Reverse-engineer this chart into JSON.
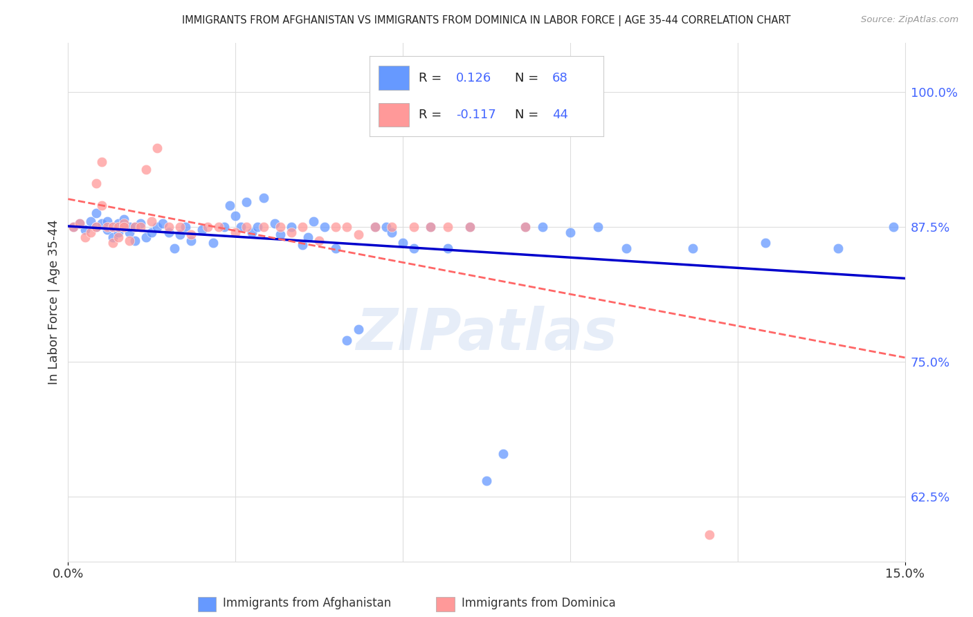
{
  "title": "IMMIGRANTS FROM AFGHANISTAN VS IMMIGRANTS FROM DOMINICA IN LABOR FORCE | AGE 35-44 CORRELATION CHART",
  "source": "Source: ZipAtlas.com",
  "ylabel": "In Labor Force | Age 35-44",
  "ytick_vals": [
    0.625,
    0.75,
    0.875,
    1.0
  ],
  "ytick_labels": [
    "62.5%",
    "75.0%",
    "87.5%",
    "100.0%"
  ],
  "xmin": 0.0,
  "xmax": 0.15,
  "ymin": 0.565,
  "ymax": 1.045,
  "afghanistan_color": "#6699ff",
  "dominica_color": "#ff9999",
  "afghanistan_line_color": "#0000cc",
  "dominica_line_color": "#ff6666",
  "R_afghanistan": "0.126",
  "N_afghanistan": "68",
  "R_dominica": "-0.117",
  "N_dominica": "44",
  "legend_label_afghanistan": "Immigrants from Afghanistan",
  "legend_label_dominica": "Immigrants from Dominica",
  "watermark": "ZIPatlas",
  "background_color": "#ffffff",
  "grid_color": "#dddddd",
  "title_color": "#222222",
  "source_color": "#999999",
  "ylabel_color": "#333333",
  "ytick_color": "#4466ff",
  "xtick_color": "#333333",
  "r_label_color": "#222222",
  "r_value_color": "#4466ff",
  "afghanistan_x": [
    0.001,
    0.002,
    0.003,
    0.004,
    0.005,
    0.005,
    0.006,
    0.007,
    0.007,
    0.008,
    0.008,
    0.009,
    0.009,
    0.01,
    0.01,
    0.011,
    0.011,
    0.012,
    0.012,
    0.013,
    0.014,
    0.015,
    0.016,
    0.017,
    0.018,
    0.019,
    0.02,
    0.021,
    0.022,
    0.024,
    0.026,
    0.028,
    0.029,
    0.03,
    0.031,
    0.032,
    0.033,
    0.034,
    0.035,
    0.037,
    0.038,
    0.04,
    0.042,
    0.043,
    0.044,
    0.046,
    0.048,
    0.05,
    0.052,
    0.055,
    0.057,
    0.058,
    0.06,
    0.062,
    0.065,
    0.068,
    0.072,
    0.075,
    0.078,
    0.082,
    0.085,
    0.09,
    0.095,
    0.1,
    0.112,
    0.125,
    0.138,
    0.148
  ],
  "afghanistan_y": [
    0.875,
    0.878,
    0.872,
    0.88,
    0.888,
    0.875,
    0.878,
    0.872,
    0.88,
    0.875,
    0.865,
    0.87,
    0.878,
    0.875,
    0.882,
    0.875,
    0.87,
    0.862,
    0.875,
    0.878,
    0.865,
    0.87,
    0.875,
    0.878,
    0.87,
    0.855,
    0.868,
    0.875,
    0.862,
    0.872,
    0.86,
    0.875,
    0.895,
    0.885,
    0.875,
    0.898,
    0.87,
    0.875,
    0.902,
    0.878,
    0.868,
    0.875,
    0.858,
    0.865,
    0.88,
    0.875,
    0.855,
    0.77,
    0.78,
    0.875,
    0.875,
    0.87,
    0.86,
    0.855,
    0.875,
    0.855,
    0.875,
    0.64,
    0.665,
    0.875,
    0.875,
    0.87,
    0.875,
    0.855,
    0.855,
    0.86,
    0.855,
    0.875
  ],
  "dominica_x": [
    0.001,
    0.002,
    0.003,
    0.004,
    0.005,
    0.005,
    0.006,
    0.006,
    0.007,
    0.008,
    0.008,
    0.009,
    0.009,
    0.01,
    0.01,
    0.011,
    0.012,
    0.013,
    0.014,
    0.015,
    0.016,
    0.018,
    0.02,
    0.022,
    0.025,
    0.027,
    0.03,
    0.032,
    0.035,
    0.038,
    0.04,
    0.042,
    0.045,
    0.048,
    0.05,
    0.052,
    0.055,
    0.058,
    0.062,
    0.065,
    0.068,
    0.072,
    0.082,
    0.115
  ],
  "dominica_y": [
    0.875,
    0.878,
    0.865,
    0.87,
    0.875,
    0.915,
    0.935,
    0.895,
    0.875,
    0.875,
    0.86,
    0.875,
    0.865,
    0.878,
    0.875,
    0.862,
    0.875,
    0.875,
    0.928,
    0.88,
    0.948,
    0.875,
    0.875,
    0.868,
    0.875,
    0.875,
    0.87,
    0.875,
    0.875,
    0.875,
    0.87,
    0.875,
    0.862,
    0.875,
    0.875,
    0.868,
    0.875,
    0.875,
    0.875,
    0.875,
    0.875,
    0.875,
    0.875,
    0.59
  ]
}
